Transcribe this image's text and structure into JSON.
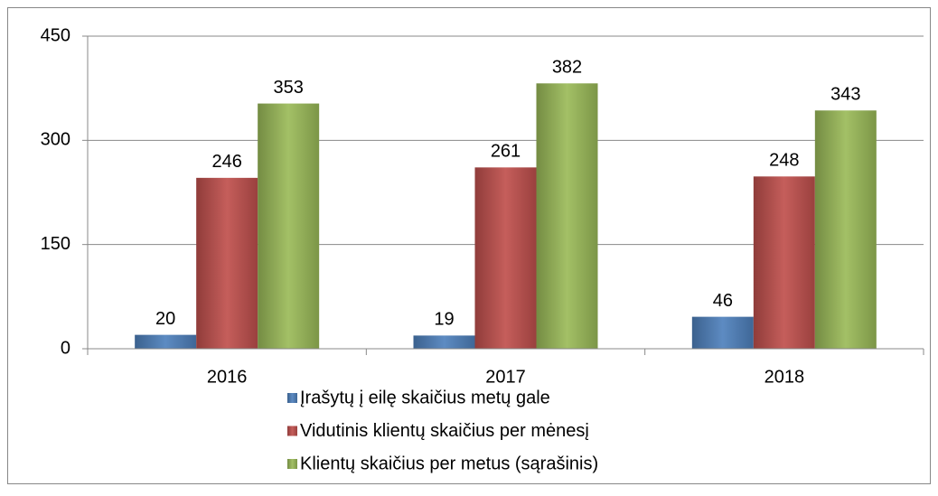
{
  "chart_data": {
    "type": "bar",
    "categories": [
      "2016",
      "2017",
      "2018"
    ],
    "series": [
      {
        "name": "Įrašytų į eilę skaičius metų gale",
        "color": "#4f81bd",
        "values": [
          20,
          19,
          46
        ]
      },
      {
        "name": "Vidutinis klientų skaičius per mėnesį",
        "color": "#c0504d",
        "values": [
          246,
          261,
          248
        ]
      },
      {
        "name": "Klientų skaičius per metus (sąrašinis)",
        "color": "#9bbb59",
        "values": [
          353,
          382,
          343
        ]
      }
    ],
    "ylim": [
      0,
      450
    ],
    "yticks": [
      0,
      150,
      300,
      450
    ],
    "grid": true,
    "legend": "bottom"
  }
}
